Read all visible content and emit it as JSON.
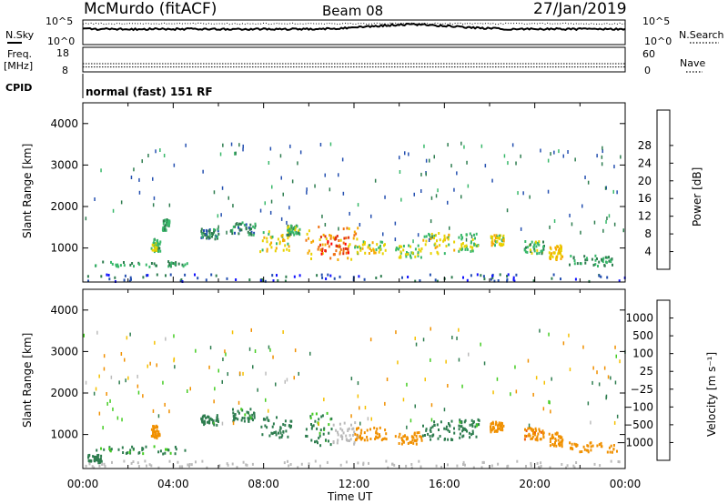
{
  "header": {
    "station": "McMurdo (fitACF)",
    "beam": "Beam 08",
    "date": "27/Jan/2019"
  },
  "noise_panel": {
    "left_label": "N.Sky",
    "right_label": "N.Search",
    "left_ticks": [
      "10^5",
      "10^0"
    ],
    "right_ticks": [
      "10^5",
      "10^0"
    ]
  },
  "freq_panel": {
    "left_label_1": "Freq.",
    "left_label_2": "[MHz]",
    "right_label": "Nave",
    "left_ticks": [
      "18",
      "8"
    ],
    "right_ticks": [
      "60",
      "0"
    ],
    "frequency_mhz": 10,
    "nave": 20
  },
  "cpid_panel": {
    "label": "CPID",
    "value": "normal (fast) 151 RF"
  },
  "chart_data": [
    {
      "type": "heatmap",
      "panel": "power",
      "ylabel": "Slant Range [km]",
      "yticks": [
        "1000",
        "2000",
        "3000",
        "4000"
      ],
      "ylim": [
        180,
        4500
      ],
      "x": [
        "00:00",
        "04:00",
        "08:00",
        "12:00",
        "16:00",
        "20:00",
        "00:00"
      ],
      "xlim_hours": [
        0,
        24
      ],
      "colorbar_label": "Power [dB]",
      "colorbar_ticks": [
        "4",
        "8",
        "12",
        "16",
        "20",
        "24",
        "28"
      ],
      "colorbar_colors": [
        "#1010ff",
        "#2550b0",
        "#2e7d4f",
        "#38b86a",
        "#e8d200",
        "#f5a800",
        "#f07010",
        "#e03010",
        "#ff0000"
      ],
      "regions": [
        {
          "t": [
            0.5,
            4.6
          ],
          "r": [
            520,
            660
          ],
          "level": 12
        },
        {
          "t": [
            3.0,
            3.4
          ],
          "r": [
            900,
            1200
          ],
          "level": 14
        },
        {
          "t": [
            3.5,
            3.8
          ],
          "r": [
            1400,
            1700
          ],
          "level": 12
        },
        {
          "t": [
            5.2,
            6.0
          ],
          "r": [
            1200,
            1450
          ],
          "level": 10
        },
        {
          "t": [
            6.5,
            7.6
          ],
          "r": [
            1300,
            1600
          ],
          "level": 10
        },
        {
          "t": [
            7.8,
            9.2
          ],
          "r": [
            900,
            1400
          ],
          "level": 18
        },
        {
          "t": [
            9.0,
            9.6
          ],
          "r": [
            1300,
            1550
          ],
          "level": 14
        },
        {
          "t": [
            9.8,
            12.2
          ],
          "r": [
            700,
            1500
          ],
          "level": 22
        },
        {
          "t": [
            10.4,
            11.8
          ],
          "r": [
            700,
            1300
          ],
          "level": 30
        },
        {
          "t": [
            12.0,
            13.4
          ],
          "r": [
            850,
            1150
          ],
          "level": 18
        },
        {
          "t": [
            13.8,
            15.0
          ],
          "r": [
            750,
            1050
          ],
          "level": 16
        },
        {
          "t": [
            15.0,
            16.4
          ],
          "r": [
            850,
            1350
          ],
          "level": 18
        },
        {
          "t": [
            16.6,
            17.5
          ],
          "r": [
            900,
            1350
          ],
          "level": 16
        },
        {
          "t": [
            18.0,
            18.6
          ],
          "r": [
            1050,
            1300
          ],
          "level": 18
        },
        {
          "t": [
            19.5,
            20.4
          ],
          "r": [
            850,
            1150
          ],
          "level": 14
        },
        {
          "t": [
            20.6,
            21.2
          ],
          "r": [
            700,
            1050
          ],
          "level": 20
        },
        {
          "t": [
            21.5,
            23.6
          ],
          "r": [
            550,
            800
          ],
          "level": 12
        },
        {
          "t": [
            0,
            24
          ],
          "r": [
            180,
            350
          ],
          "level": 6
        }
      ]
    },
    {
      "type": "heatmap",
      "panel": "velocity",
      "ylabel": "Slant Range [km]",
      "yticks": [
        "1000",
        "2000",
        "3000",
        "4000"
      ],
      "ylim": [
        180,
        4500
      ],
      "x": [
        "00:00",
        "04:00",
        "08:00",
        "12:00",
        "16:00",
        "20:00",
        "00:00"
      ],
      "xlim_hours": [
        0,
        24
      ],
      "xlabel": "Time UT",
      "colorbar_label": "Velocity [m s⁻¹]",
      "colorbar_ticks": [
        "1000",
        "500",
        "100",
        "25",
        "−25",
        "−100",
        "−500",
        "−1000"
      ],
      "colorbar_colors": [
        "#1010ff",
        "#2550b0",
        "#2e7d4f",
        "#44cc22",
        "#bbbbbb",
        "#f5c000",
        "#f09000",
        "#f06010",
        "#ff0000"
      ],
      "regions": [
        {
          "t": [
            0.5,
            4.6
          ],
          "r": [
            520,
            700
          ],
          "level": 120
        },
        {
          "t": [
            0.2,
            0.8
          ],
          "r": [
            300,
            500
          ],
          "level": 200
        },
        {
          "t": [
            3.0,
            3.4
          ],
          "r": [
            900,
            1200
          ],
          "level": -200
        },
        {
          "t": [
            5.2,
            6.0
          ],
          "r": [
            1200,
            1450
          ],
          "level": 150
        },
        {
          "t": [
            6.5,
            7.6
          ],
          "r": [
            1300,
            1600
          ],
          "level": 150
        },
        {
          "t": [
            7.8,
            9.2
          ],
          "r": [
            900,
            1400
          ],
          "level": 250
        },
        {
          "t": [
            9.8,
            11.0
          ],
          "r": [
            700,
            1500
          ],
          "level": 120
        },
        {
          "t": [
            11.0,
            12.2
          ],
          "r": [
            750,
            1300
          ],
          "level": 0
        },
        {
          "t": [
            12.0,
            13.4
          ],
          "r": [
            850,
            1150
          ],
          "level": -300
        },
        {
          "t": [
            13.8,
            15.0
          ],
          "r": [
            750,
            1050
          ],
          "level": -200
        },
        {
          "t": [
            15.0,
            16.4
          ],
          "r": [
            850,
            1350
          ],
          "level": 200
        },
        {
          "t": [
            16.6,
            17.5
          ],
          "r": [
            900,
            1350
          ],
          "level": 150
        },
        {
          "t": [
            18.0,
            18.6
          ],
          "r": [
            1050,
            1300
          ],
          "level": -200
        },
        {
          "t": [
            19.5,
            20.4
          ],
          "r": [
            850,
            1150
          ],
          "level": -400
        },
        {
          "t": [
            20.6,
            21.2
          ],
          "r": [
            700,
            1050
          ],
          "level": -300
        },
        {
          "t": [
            21.5,
            23.6
          ],
          "r": [
            550,
            800
          ],
          "level": -200
        },
        {
          "t": [
            0,
            24
          ],
          "r": [
            180,
            350
          ],
          "level": 0
        }
      ]
    }
  ]
}
